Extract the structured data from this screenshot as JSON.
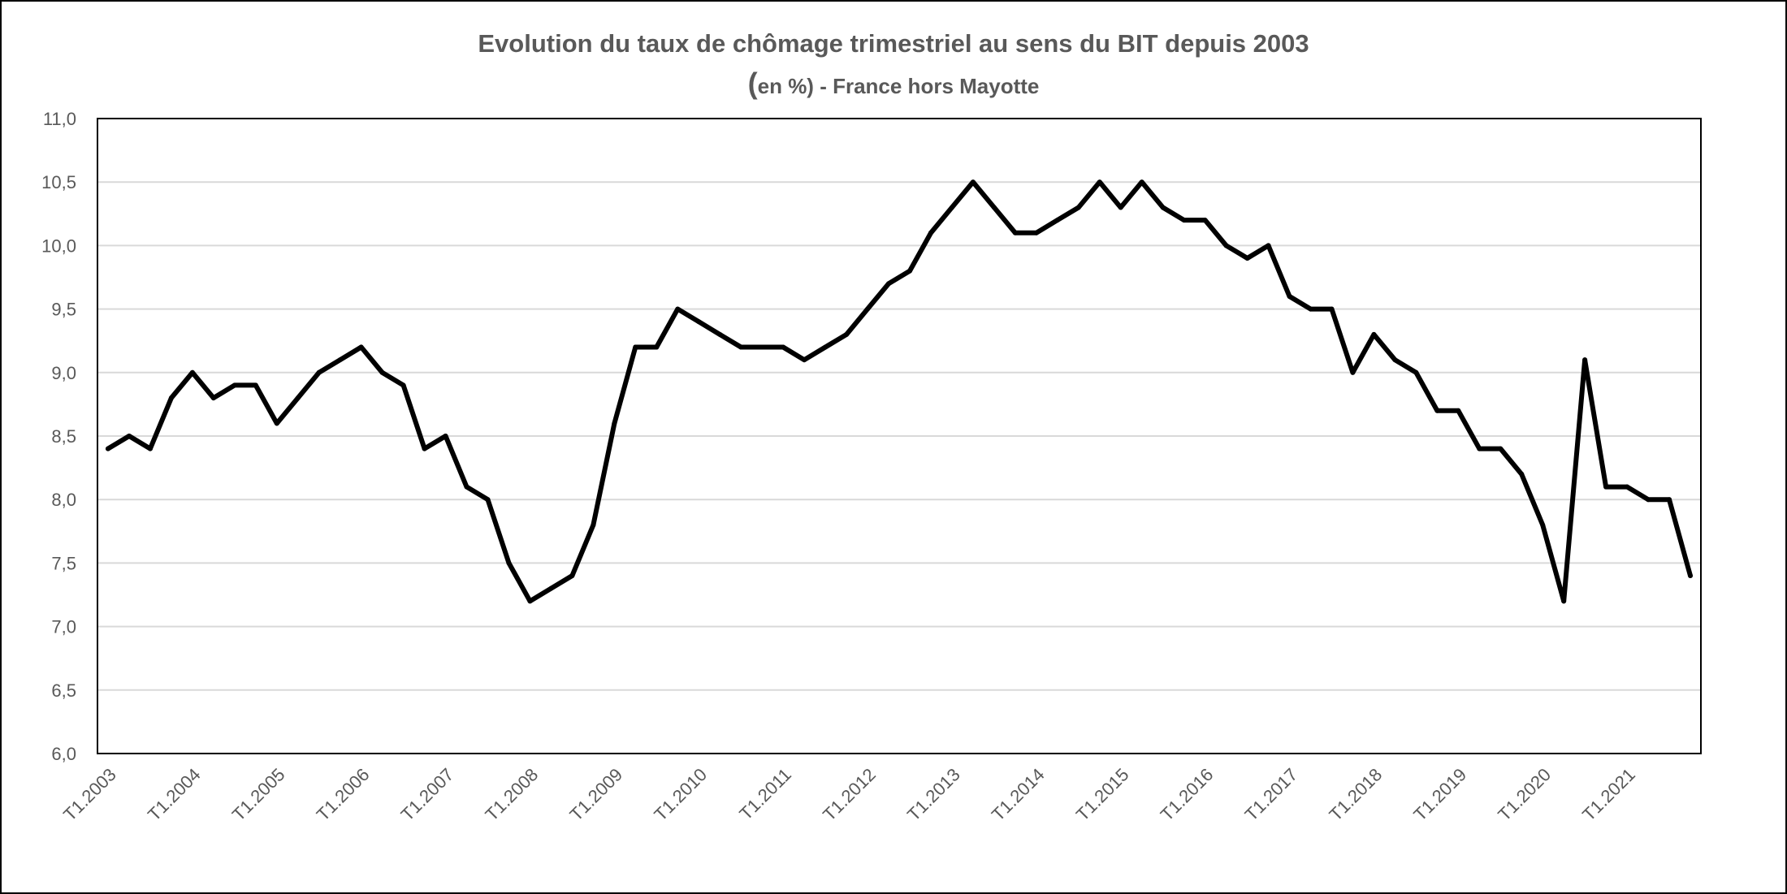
{
  "chart_data": {
    "type": "line",
    "title": "Evolution du taux de chômage trimestriel au sens du BIT depuis 2003",
    "subtitle_paren": "(",
    "subtitle": "en %) - France hors Mayotte",
    "ylim": [
      6.0,
      11.0
    ],
    "y_ticks": [
      "6,0",
      "6,5",
      "7,0",
      "7,5",
      "8,0",
      "8,5",
      "9,0",
      "9,5",
      "10,0",
      "10,5",
      "11,0"
    ],
    "x_tick_labels": [
      "T1.2003",
      "T1.2004",
      "T1.2005",
      "T1.2006",
      "T1.2007",
      "T1.2008",
      "T1.2009",
      "T1.2010",
      "T1.2011",
      "T1.2012",
      "T1.2013",
      "T1.2014",
      "T1.2015",
      "T1.2016",
      "T1.2017",
      "T1.2018",
      "T1.2019",
      "T1.2020",
      "T1.2021"
    ],
    "grid": true,
    "line_color": "#000000",
    "series": [
      {
        "values": [
          8.4,
          8.5,
          8.4,
          8.8,
          9.0,
          8.8,
          8.9,
          8.9,
          8.6,
          8.8,
          9.0,
          9.1,
          9.2,
          9.0,
          8.9,
          8.4,
          8.5,
          8.1,
          8.0,
          7.5,
          7.2,
          7.3,
          7.4,
          7.8,
          8.6,
          9.2,
          9.2,
          9.5,
          9.4,
          9.3,
          9.2,
          9.2,
          9.2,
          9.1,
          9.2,
          9.3,
          9.5,
          9.7,
          9.8,
          10.1,
          10.3,
          10.5,
          10.3,
          10.1,
          10.1,
          10.2,
          10.3,
          10.5,
          10.3,
          10.5,
          10.3,
          10.2,
          10.2,
          10.0,
          9.9,
          10.0,
          9.6,
          9.5,
          9.5,
          9.0,
          9.3,
          9.1,
          9.0,
          8.7,
          8.7,
          8.4,
          8.4,
          8.2,
          7.8,
          7.2,
          9.1,
          8.1,
          8.1,
          8.0,
          8.0,
          7.4
        ]
      }
    ]
  }
}
